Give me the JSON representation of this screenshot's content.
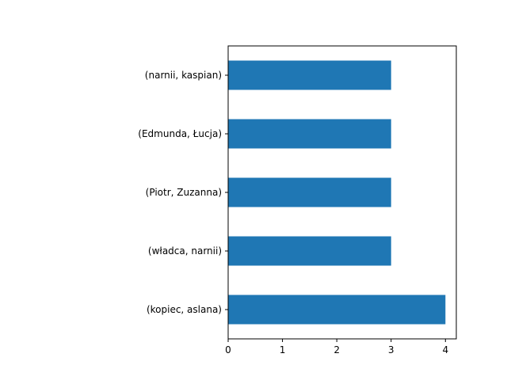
{
  "chart_data": {
    "type": "bar",
    "orientation": "horizontal",
    "title": "",
    "xlabel": "",
    "ylabel": "",
    "categories": [
      "(kopiec, aslana)",
      "(władca, narnii)",
      "(Piotr, Zuzanna)",
      "(Edmunda, Łucja)",
      "(narnii, kaspian)"
    ],
    "values": [
      4,
      3,
      3,
      3,
      3
    ],
    "xlim": [
      0,
      4.2
    ],
    "xticks": [
      "0",
      "1",
      "2",
      "3",
      "4"
    ],
    "bar_color": "#1f77b4",
    "grid": false,
    "legend": "none"
  }
}
